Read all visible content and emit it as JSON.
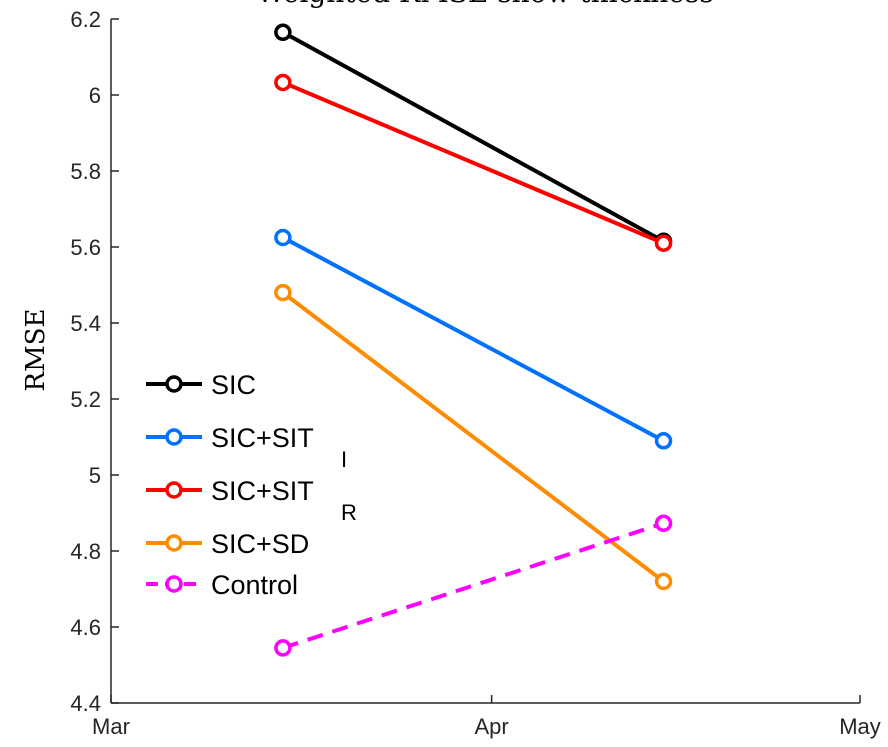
{
  "chart_data": {
    "type": "line",
    "title": "Weighted RMSE snow thickness",
    "xlabel": "",
    "ylabel": "RMSE",
    "x_ticks": [
      "Mar",
      "Apr",
      "May"
    ],
    "x": [
      "Mar 15",
      "Apr 15"
    ],
    "ylim": [
      4.4,
      6.2
    ],
    "y_ticks": [
      "4.4",
      "4.6",
      "4.8",
      "5",
      "5.2",
      "5.4",
      "5.6",
      "5.8",
      "6",
      "6.2"
    ],
    "grid": false,
    "legend_position": "left-center",
    "series": [
      {
        "name": "SIC",
        "name_sub": "",
        "color": "#000000",
        "dashed": false,
        "values": [
          6.165,
          5.615
        ]
      },
      {
        "name": "SIC+SIT",
        "name_sub": "I",
        "color": "#0072ff",
        "dashed": false,
        "values": [
          5.625,
          5.09
        ]
      },
      {
        "name": "SIC+SIT",
        "name_sub": "R",
        "color": "#ff0000",
        "dashed": false,
        "values": [
          6.033,
          5.61
        ]
      },
      {
        "name": "SIC+SD",
        "name_sub": "",
        "color": "#ff8c00",
        "dashed": false,
        "values": [
          5.48,
          4.72
        ]
      },
      {
        "name": "Control",
        "name_sub": "",
        "color": "#ff00ff",
        "dashed": true,
        "values": [
          4.545,
          4.873
        ]
      }
    ]
  }
}
